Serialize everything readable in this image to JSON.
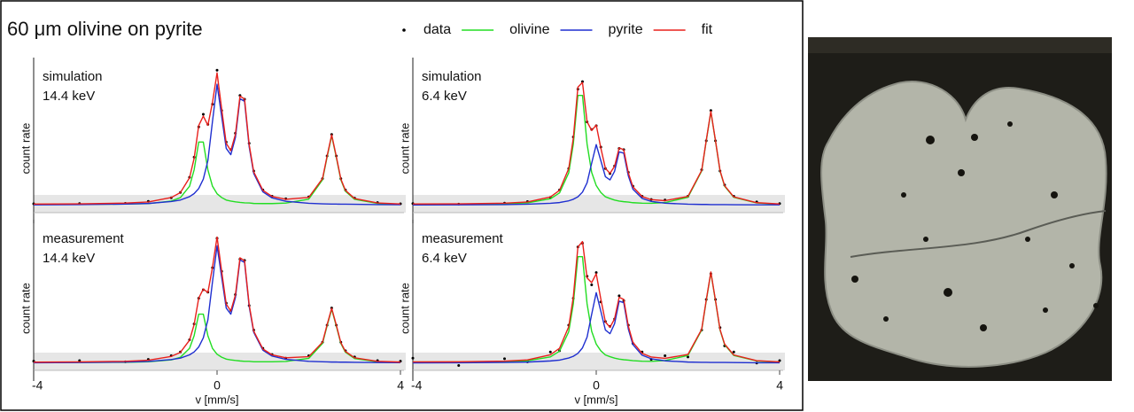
{
  "title": "60 μm olivine on pyrite",
  "chart_data": [
    {
      "type": "line",
      "annotation": "simulation",
      "energy": "14.4 keV",
      "y_label": "count rate",
      "xlim": [
        -4,
        4
      ],
      "ylim": [
        -0.06,
        1.1
      ],
      "x": [
        -4,
        -3,
        -2,
        -1.5,
        -1,
        -0.8,
        -0.6,
        -0.5,
        -0.4,
        -0.3,
        -0.2,
        -0.1,
        0,
        0.1,
        0.2,
        0.3,
        0.4,
        0.5,
        0.6,
        0.7,
        0.8,
        1,
        1.2,
        1.5,
        2,
        2.3,
        2.4,
        2.5,
        2.6,
        2.7,
        2.8,
        3,
        3.5,
        4
      ],
      "series": [
        {
          "name": "data",
          "color": "#000000",
          "style": "markers",
          "values": [
            0.01,
            0.012,
            0.014,
            0.03,
            0.058,
            0.1,
            0.22,
            0.38,
            0.62,
            0.72,
            0.64,
            0.8,
            1.07,
            0.75,
            0.5,
            0.44,
            0.57,
            0.87,
            0.84,
            0.49,
            0.27,
            0.12,
            0.07,
            0.05,
            0.065,
            0.21,
            0.39,
            0.56,
            0.39,
            0.21,
            0.12,
            0.055,
            0.02,
            0.01
          ]
        },
        {
          "name": "olivine",
          "color": "#22dd22",
          "style": "line",
          "values": [
            0.006,
            0.006,
            0.008,
            0.012,
            0.032,
            0.059,
            0.15,
            0.28,
            0.5,
            0.5,
            0.28,
            0.15,
            0.09,
            0.06,
            0.04,
            0.032,
            0.026,
            0.021,
            0.018,
            0.017,
            0.013,
            0.012,
            0.012,
            0.016,
            0.047,
            0.2,
            0.38,
            0.55,
            0.38,
            0.2,
            0.11,
            0.046,
            0.013,
            0.006
          ]
        },
        {
          "name": "pyrite",
          "color": "#1f2fd0",
          "style": "line",
          "values": [
            0.002,
            0.004,
            0.008,
            0.013,
            0.028,
            0.04,
            0.067,
            0.091,
            0.131,
            0.206,
            0.353,
            0.663,
            0.959,
            0.705,
            0.45,
            0.4,
            0.535,
            0.844,
            0.823,
            0.464,
            0.251,
            0.105,
            0.057,
            0.03,
            0.014,
            0.01,
            0.009,
            0.008,
            0.008,
            0.007,
            0.007,
            0.006,
            0.004,
            0.003
          ]
        },
        {
          "name": "fit",
          "color": "#e8201c",
          "style": "line",
          "values": [
            0.008,
            0.01,
            0.016,
            0.025,
            0.06,
            0.099,
            0.217,
            0.371,
            0.631,
            0.706,
            0.633,
            0.813,
            1.049,
            0.765,
            0.49,
            0.432,
            0.561,
            0.865,
            0.841,
            0.481,
            0.264,
            0.117,
            0.069,
            0.046,
            0.061,
            0.21,
            0.389,
            0.558,
            0.388,
            0.207,
            0.117,
            0.052,
            0.017,
            0.009
          ]
        }
      ]
    },
    {
      "type": "line",
      "annotation": "simulation",
      "energy": "6.4 keV",
      "y_label": "count rate",
      "xlim": [
        -4,
        4
      ],
      "ylim": [
        -0.06,
        1.1
      ],
      "x": [
        -4,
        -3,
        -2,
        -1.5,
        -1,
        -0.8,
        -0.6,
        -0.5,
        -0.4,
        -0.3,
        -0.2,
        -0.1,
        0,
        0.1,
        0.2,
        0.3,
        0.4,
        0.5,
        0.6,
        0.7,
        0.8,
        1,
        1.2,
        1.5,
        2,
        2.3,
        2.4,
        2.5,
        2.6,
        2.7,
        2.8,
        3,
        3.5,
        4
      ],
      "series": [
        {
          "name": "data",
          "color": "#000000",
          "style": "markers",
          "values": [
            0.012,
            0.008,
            0.016,
            0.028,
            0.06,
            0.12,
            0.29,
            0.54,
            0.92,
            0.98,
            0.66,
            0.6,
            0.63,
            0.46,
            0.29,
            0.25,
            0.31,
            0.45,
            0.44,
            0.26,
            0.15,
            0.07,
            0.045,
            0.04,
            0.07,
            0.28,
            0.51,
            0.75,
            0.51,
            0.27,
            0.16,
            0.07,
            0.025,
            0.012
          ]
        },
        {
          "name": "olivine",
          "color": "#22dd22",
          "style": "line",
          "values": [
            0.008,
            0.008,
            0.011,
            0.018,
            0.05,
            0.097,
            0.256,
            0.485,
            0.87,
            0.87,
            0.485,
            0.26,
            0.155,
            0.1,
            0.066,
            0.052,
            0.04,
            0.032,
            0.027,
            0.024,
            0.019,
            0.015,
            0.014,
            0.02,
            0.062,
            0.27,
            0.51,
            0.74,
            0.51,
            0.27,
            0.15,
            0.062,
            0.017,
            0.007
          ]
        },
        {
          "name": "pyrite",
          "color": "#1f2fd0",
          "style": "line",
          "values": [
            0.001,
            0.002,
            0.004,
            0.007,
            0.014,
            0.02,
            0.034,
            0.046,
            0.066,
            0.103,
            0.177,
            0.332,
            0.48,
            0.353,
            0.225,
            0.2,
            0.268,
            0.422,
            0.412,
            0.232,
            0.126,
            0.053,
            0.029,
            0.015,
            0.007,
            0.005,
            0.005,
            0.004,
            0.004,
            0.004,
            0.004,
            0.003,
            0.002,
            0.002
          ]
        },
        {
          "name": "fit",
          "color": "#e8201c",
          "style": "line",
          "values": [
            0.009,
            0.01,
            0.015,
            0.025,
            0.064,
            0.117,
            0.29,
            0.531,
            0.936,
            0.973,
            0.662,
            0.592,
            0.635,
            0.453,
            0.291,
            0.252,
            0.308,
            0.454,
            0.439,
            0.256,
            0.145,
            0.068,
            0.043,
            0.035,
            0.069,
            0.275,
            0.515,
            0.744,
            0.514,
            0.274,
            0.154,
            0.065,
            0.019,
            0.009
          ]
        }
      ]
    },
    {
      "type": "line",
      "annotation": "measurement",
      "energy": "14.4 keV",
      "y_label": "count rate",
      "x_label": "v [mm/s]",
      "xlim": [
        -4,
        4
      ],
      "xticks": [
        -4,
        0,
        4
      ],
      "ylim": [
        -0.06,
        1.1
      ],
      "x": [
        -4,
        -3,
        -2,
        -1.5,
        -1,
        -0.8,
        -0.6,
        -0.5,
        -0.4,
        -0.3,
        -0.2,
        -0.1,
        0,
        0.1,
        0.2,
        0.3,
        0.4,
        0.5,
        0.6,
        0.7,
        0.8,
        1,
        1.2,
        1.5,
        2,
        2.3,
        2.4,
        2.5,
        2.6,
        2.7,
        2.8,
        3,
        3.5,
        4
      ],
      "series": [
        {
          "name": "data",
          "color": "#000000",
          "style": "markers",
          "values": [
            0.015,
            0.02,
            0.01,
            0.03,
            0.06,
            0.09,
            0.19,
            0.32,
            0.53,
            0.6,
            0.58,
            0.78,
            1.02,
            0.75,
            0.49,
            0.43,
            0.56,
            0.85,
            0.84,
            0.47,
            0.27,
            0.12,
            0.07,
            0.04,
            0.06,
            0.17,
            0.31,
            0.45,
            0.31,
            0.17,
            0.1,
            0.05,
            0.02,
            0.015
          ]
        },
        {
          "name": "olivine",
          "color": "#22dd22",
          "style": "line",
          "values": [
            0.005,
            0.005,
            0.006,
            0.01,
            0.026,
            0.047,
            0.12,
            0.224,
            0.4,
            0.4,
            0.224,
            0.12,
            0.072,
            0.048,
            0.032,
            0.026,
            0.021,
            0.017,
            0.014,
            0.014,
            0.01,
            0.01,
            0.01,
            0.013,
            0.038,
            0.16,
            0.304,
            0.44,
            0.304,
            0.16,
            0.088,
            0.037,
            0.01,
            0.005
          ]
        },
        {
          "name": "pyrite",
          "color": "#1f2fd0",
          "style": "line",
          "values": [
            0.002,
            0.004,
            0.008,
            0.013,
            0.028,
            0.04,
            0.067,
            0.091,
            0.131,
            0.206,
            0.353,
            0.663,
            0.959,
            0.705,
            0.45,
            0.4,
            0.535,
            0.844,
            0.823,
            0.464,
            0.251,
            0.105,
            0.057,
            0.03,
            0.014,
            0.01,
            0.009,
            0.008,
            0.008,
            0.007,
            0.007,
            0.006,
            0.004,
            0.003
          ]
        },
        {
          "name": "fit",
          "color": "#e8201c",
          "style": "line",
          "values": [
            0.007,
            0.009,
            0.014,
            0.023,
            0.054,
            0.087,
            0.187,
            0.315,
            0.531,
            0.606,
            0.577,
            0.783,
            1.031,
            0.753,
            0.482,
            0.426,
            0.556,
            0.861,
            0.837,
            0.478,
            0.261,
            0.115,
            0.067,
            0.043,
            0.052,
            0.17,
            0.313,
            0.448,
            0.312,
            0.167,
            0.095,
            0.043,
            0.014,
            0.008
          ]
        }
      ]
    },
    {
      "type": "line",
      "annotation": "measurement",
      "energy": "6.4 keV",
      "y_label": "count rate",
      "x_label": "v [mm/s]",
      "xlim": [
        -4,
        4
      ],
      "xticks": [
        -4,
        0,
        4
      ],
      "ylim": [
        -0.06,
        1.1
      ],
      "x": [
        -4,
        -3,
        -2,
        -1.5,
        -1,
        -0.8,
        -0.6,
        -0.5,
        -0.4,
        -0.3,
        -0.2,
        -0.1,
        0,
        0.1,
        0.2,
        0.3,
        0.4,
        0.5,
        0.6,
        0.7,
        0.8,
        1,
        1.2,
        1.5,
        2,
        2.3,
        2.4,
        2.5,
        2.6,
        2.7,
        2.8,
        3,
        3.5,
        4
      ],
      "series": [
        {
          "name": "data",
          "color": "#000000",
          "style": "markers",
          "values": [
            0.04,
            -0.02,
            0.035,
            0.01,
            0.09,
            0.1,
            0.31,
            0.53,
            0.95,
            0.98,
            0.71,
            0.64,
            0.74,
            0.5,
            0.34,
            0.3,
            0.36,
            0.55,
            0.51,
            0.31,
            0.16,
            0.09,
            0.03,
            0.06,
            0.05,
            0.27,
            0.52,
            0.73,
            0.52,
            0.29,
            0.14,
            0.09,
            0.0,
            0.02
          ]
        },
        {
          "name": "olivine",
          "color": "#22dd22",
          "style": "line",
          "values": [
            0.008,
            0.008,
            0.011,
            0.018,
            0.05,
            0.097,
            0.256,
            0.485,
            0.87,
            0.87,
            0.485,
            0.26,
            0.155,
            0.1,
            0.066,
            0.052,
            0.04,
            0.032,
            0.027,
            0.024,
            0.019,
            0.015,
            0.014,
            0.02,
            0.062,
            0.27,
            0.51,
            0.74,
            0.51,
            0.27,
            0.15,
            0.062,
            0.017,
            0.007
          ]
        },
        {
          "name": "pyrite",
          "color": "#1f2fd0",
          "style": "line",
          "values": [
            0.001,
            0.002,
            0.005,
            0.008,
            0.017,
            0.024,
            0.041,
            0.055,
            0.079,
            0.124,
            0.212,
            0.398,
            0.576,
            0.424,
            0.27,
            0.24,
            0.322,
            0.506,
            0.494,
            0.278,
            0.151,
            0.064,
            0.035,
            0.018,
            0.008,
            0.006,
            0.006,
            0.005,
            0.005,
            0.005,
            0.005,
            0.004,
            0.002,
            0.002
          ]
        },
        {
          "name": "fit",
          "color": "#e8201c",
          "style": "line",
          "values": [
            0.009,
            0.01,
            0.016,
            0.026,
            0.067,
            0.121,
            0.297,
            0.54,
            0.949,
            0.994,
            0.697,
            0.658,
            0.731,
            0.524,
            0.336,
            0.292,
            0.362,
            0.538,
            0.521,
            0.302,
            0.17,
            0.079,
            0.049,
            0.038,
            0.07,
            0.276,
            0.516,
            0.745,
            0.515,
            0.275,
            0.155,
            0.066,
            0.019,
            0.009
          ]
        }
      ]
    }
  ]
}
